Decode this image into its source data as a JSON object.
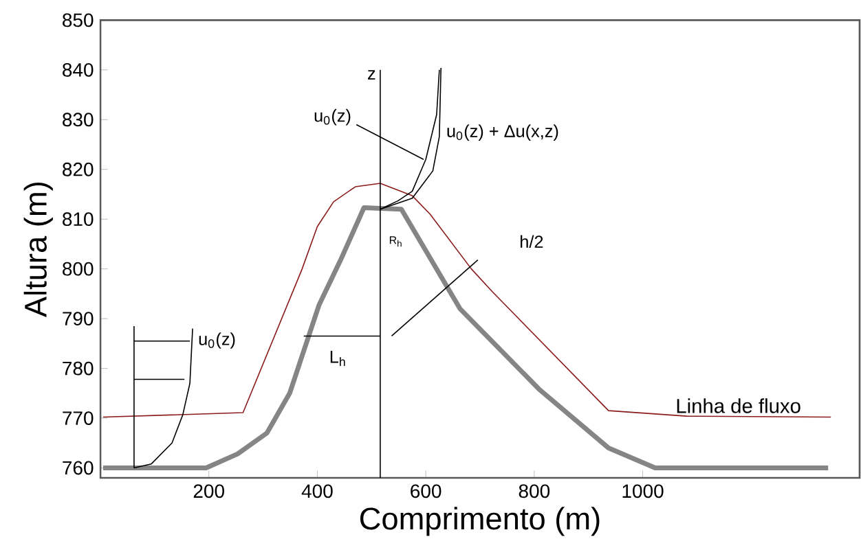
{
  "chart_data": {
    "type": "line",
    "xlabel": "Comprimento (m)",
    "ylabel": "Altura (m)",
    "xlim": [
      0,
      1400
    ],
    "ylim": [
      758,
      850
    ],
    "xticks": [
      200,
      400,
      600,
      800,
      1000
    ],
    "yticks": [
      760,
      770,
      780,
      790,
      800,
      810,
      820,
      830,
      840,
      850
    ],
    "grid": false,
    "legend": false,
    "marker": "none",
    "series": [
      {
        "color": "#858585",
        "x": [
          5,
          195,
          253,
          307,
          349,
          403,
          443,
          486,
          555,
          663,
          810,
          937,
          1023,
          1342
        ],
        "values": [
          760,
          760,
          762.8,
          767,
          775,
          792.7,
          801.8,
          812.3,
          812,
          792,
          775.7,
          764,
          760,
          760
        ]
      },
      {
        "name": "Linha de fluxo",
        "color": "#8b1a1a",
        "x": [
          5,
          263,
          372,
          400,
          430,
          470,
          516,
          575,
          608,
          684,
          722,
          937,
          1081,
          1347
        ],
        "values": [
          770.2,
          771.1,
          800,
          808.5,
          813.5,
          816.5,
          817.2,
          814.7,
          811,
          800,
          795.5,
          771.5,
          770.4,
          770.2
        ]
      },
      {
        "color": "#000000",
        "x": [
          62,
          94,
          132,
          152,
          165,
          170
        ],
        "values": [
          760,
          760.8,
          765,
          770.7,
          777,
          788
        ]
      },
      {
        "color": "#000000",
        "x": [
          62,
          62
        ],
        "values": [
          760,
          788.5
        ]
      },
      {
        "color": "#000000",
        "x": [
          62,
          165
        ],
        "values": [
          785.5,
          785.5
        ]
      },
      {
        "color": "#000000",
        "x": [
          62,
          155
        ],
        "values": [
          777.8,
          777.8
        ]
      },
      {
        "color": "#000000",
        "x": [
          516,
          516
        ],
        "values": [
          758,
          840
        ]
      },
      {
        "color": "#000000",
        "x": [
          516,
          549,
          575,
          600,
          620,
          625
        ],
        "values": [
          812,
          813.7,
          815.6,
          822,
          831,
          840
        ]
      },
      {
        "color": "#000000",
        "x": [
          516,
          575,
          613,
          625,
          628
        ],
        "values": [
          812,
          814.2,
          819.7,
          826.6,
          840.4
        ]
      },
      {
        "color": "#000000",
        "x": [
          375,
          516
        ],
        "values": [
          786.5,
          786.5
        ]
      },
      {
        "color": "#000000",
        "x": [
          696,
          537
        ],
        "values": [
          801.8,
          786.5
        ]
      },
      {
        "color": "#000000",
        "x": [
          472,
          596
        ],
        "values": [
          829,
          822
        ]
      }
    ],
    "annotations": [
      {
        "text": "z",
        "x": 500,
        "y": 839
      },
      {
        "text": "u$_{0}$(z)",
        "x": 215,
        "y": 785.6
      },
      {
        "text": "L$_{h}$",
        "x": 438,
        "y": 782
      },
      {
        "text": "u$_{0}$(z)",
        "x": 428,
        "y": 830.5
      },
      {
        "text": "u$_{0}$(z) + Δu(x,z)",
        "x": 627,
        "y": 827.4
      },
      {
        "text": "h/2",
        "x": 795,
        "y": 805.5
      },
      {
        "text": "R$_{h}$",
        "x": 545,
        "y": 805.5
      }
    ]
  }
}
